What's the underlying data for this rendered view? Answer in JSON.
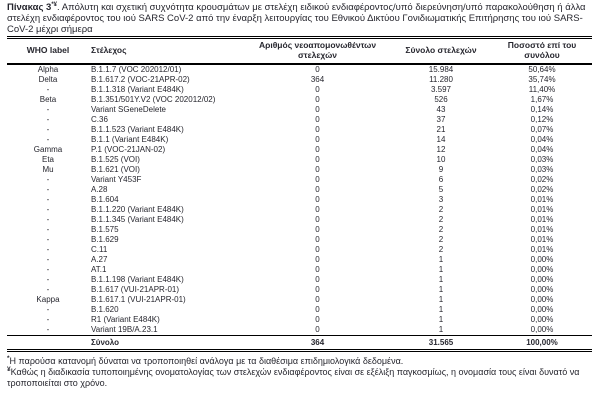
{
  "title": {
    "table_label": "Πίνακας 3",
    "superscript": "*¥",
    "text": ". Απόλυτη και σχετική συχνότητα κρουσμάτων με στελέχη ειδικού ενδιαφέροντος/υπό διερεύνηση/υπό παρακολούθηση ή άλλα στελέχη ενδιαφέροντος του ιού SARS CoV-2 από την έναρξη λειτουργίας του Εθνικού Δικτύου Γονιδιωματικής Επιτήρησης του ιού SARS-CoV-2 μέχρι σήμερα"
  },
  "table": {
    "columns": [
      "WHO label",
      "Στέλεχος",
      "Αριθμός νεοαπομονωθέντων στελεχών",
      "Σύνολο στελεχών",
      "Ποσοστό επί του συνόλου"
    ],
    "rows": [
      [
        "Alpha",
        "B.1.1.7 (VOC 202012/01)",
        "0",
        "15.984",
        "50,64%"
      ],
      [
        "Delta",
        "B.1.617.2 (VOC-21APR-02)",
        "364",
        "11.280",
        "35,74%"
      ],
      [
        "-",
        "B.1.1.318 (Variant E484K)",
        "0",
        "3.597",
        "11,40%"
      ],
      [
        "Beta",
        "B.1.351/501Y.V2 (VOC 202012/02)",
        "0",
        "526",
        "1,67%"
      ],
      [
        "-",
        "Variant SGeneDelete",
        "0",
        "43",
        "0,14%"
      ],
      [
        "-",
        "C.36",
        "0",
        "37",
        "0,12%"
      ],
      [
        "-",
        "B.1.1.523 (Variant E484K)",
        "0",
        "21",
        "0,07%"
      ],
      [
        "-",
        "B.1.1 (Variant E484K)",
        "0",
        "14",
        "0,04%"
      ],
      [
        "Gamma",
        "P.1 (VOC-21JAN-02)",
        "0",
        "12",
        "0,04%"
      ],
      [
        "Eta",
        "B.1.525 (VOI)",
        "0",
        "10",
        "0,03%"
      ],
      [
        "Mu",
        "B.1.621 (VOI)",
        "0",
        "9",
        "0,03%"
      ],
      [
        "-",
        "Variant Y453F",
        "0",
        "6",
        "0,02%"
      ],
      [
        "-",
        "A.28",
        "0",
        "5",
        "0,02%"
      ],
      [
        "-",
        "B.1.604",
        "0",
        "3",
        "0,01%"
      ],
      [
        "-",
        "B.1.1.220 (Variant E484K)",
        "0",
        "2",
        "0,01%"
      ],
      [
        "-",
        "B.1.1.345 (Variant E484K)",
        "0",
        "2",
        "0,01%"
      ],
      [
        "-",
        "B.1.575",
        "0",
        "2",
        "0,01%"
      ],
      [
        "-",
        "B.1.629",
        "0",
        "2",
        "0,01%"
      ],
      [
        "-",
        "C.11",
        "0",
        "2",
        "0,01%"
      ],
      [
        "-",
        "A.27",
        "0",
        "1",
        "0,00%"
      ],
      [
        "-",
        "AT.1",
        "0",
        "1",
        "0,00%"
      ],
      [
        "-",
        "B.1.1.198 (Variant E484K)",
        "0",
        "1",
        "0,00%"
      ],
      [
        "-",
        "B.1.617 (VUI-21APR-01)",
        "0",
        "1",
        "0,00%"
      ],
      [
        "Kappa",
        "B.1.617.1 (VUI-21APR-01)",
        "0",
        "1",
        "0,00%"
      ],
      [
        "-",
        "B.1.620",
        "0",
        "1",
        "0,00%"
      ],
      [
        "-",
        "R1 (Variant E484K)",
        "0",
        "1",
        "0,00%"
      ],
      [
        "-",
        "Variant 19B/A.23.1",
        "0",
        "1",
        "0,00%"
      ]
    ],
    "total": {
      "label": "Σύνολο",
      "new_isolates": "364",
      "total_strains": "31.565",
      "percentage": "100,00%"
    }
  },
  "footnotes": [
    {
      "marker": "*",
      "text": "Η παρούσα κατανομή δύναται να τροποποιηθεί ανάλογα με τα διαθέσιμα επιδημιολογικά δεδομένα."
    },
    {
      "marker": "¥",
      "text": "Καθώς η διαδικασία τυποποιημένης ονοματολογίας των στελεχών ενδιαφέροντος είναι σε εξέλιξη παγκοσμίως, η ονομασία τους είναι δυνατό να τροποποιείται στο χρόνο."
    }
  ]
}
